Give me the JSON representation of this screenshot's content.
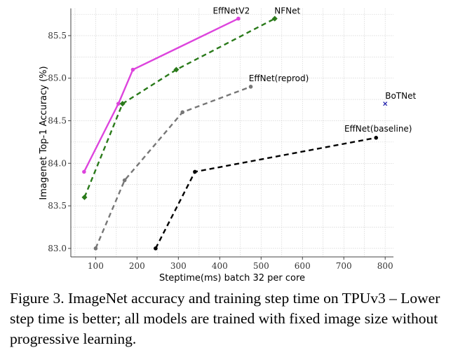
{
  "chart_data": {
    "type": "line",
    "xlabel": "Steptime(ms) batch 32 per core",
    "ylabel": "Imagenet Top-1 Accuracy (%)",
    "xlim": [
      40,
      820
    ],
    "ylim": [
      82.9,
      85.82
    ],
    "x_ticks": [
      100,
      200,
      300,
      400,
      500,
      600,
      700,
      800
    ],
    "y_ticks": [
      83.0,
      83.5,
      84.0,
      84.5,
      85.0,
      85.5
    ],
    "y_tick_labels": [
      "83.0",
      "83.5",
      "84.0",
      "84.5",
      "85.0",
      "85.5"
    ],
    "grid": true,
    "series": [
      {
        "name": "EffNetV2",
        "color": "#dd44dd",
        "style": "solid",
        "marker": "circle",
        "x": [
          72,
          155,
          190,
          445
        ],
        "y": [
          83.9,
          84.7,
          85.1,
          85.7
        ]
      },
      {
        "name": "NFNet",
        "color": "#2a7a1a",
        "style": "dashed",
        "marker": "diamond",
        "x": [
          73,
          165,
          295,
          533
        ],
        "y": [
          83.6,
          84.7,
          85.1,
          85.7
        ]
      },
      {
        "name": "EffNet(reprod)",
        "color": "#777777",
        "style": "dashed",
        "marker": "circle",
        "x": [
          100,
          170,
          310,
          475
        ],
        "y": [
          83.0,
          83.8,
          84.6,
          84.9
        ]
      },
      {
        "name": "EffNet(baseline)",
        "color": "#000000",
        "style": "dashed",
        "marker": "circle",
        "x": [
          245,
          340,
          778
        ],
        "y": [
          83.0,
          83.9,
          84.3
        ]
      },
      {
        "name": "BoTNet",
        "color": "#1a1aaa",
        "style": "none",
        "marker": "x",
        "x": [
          800
        ],
        "y": [
          84.7
        ]
      }
    ]
  },
  "caption": "Figure 3. ImageNet accuracy and training step time on TPUv3 – Lower step time is better; all models are trained with fixed image size without progressive learning."
}
